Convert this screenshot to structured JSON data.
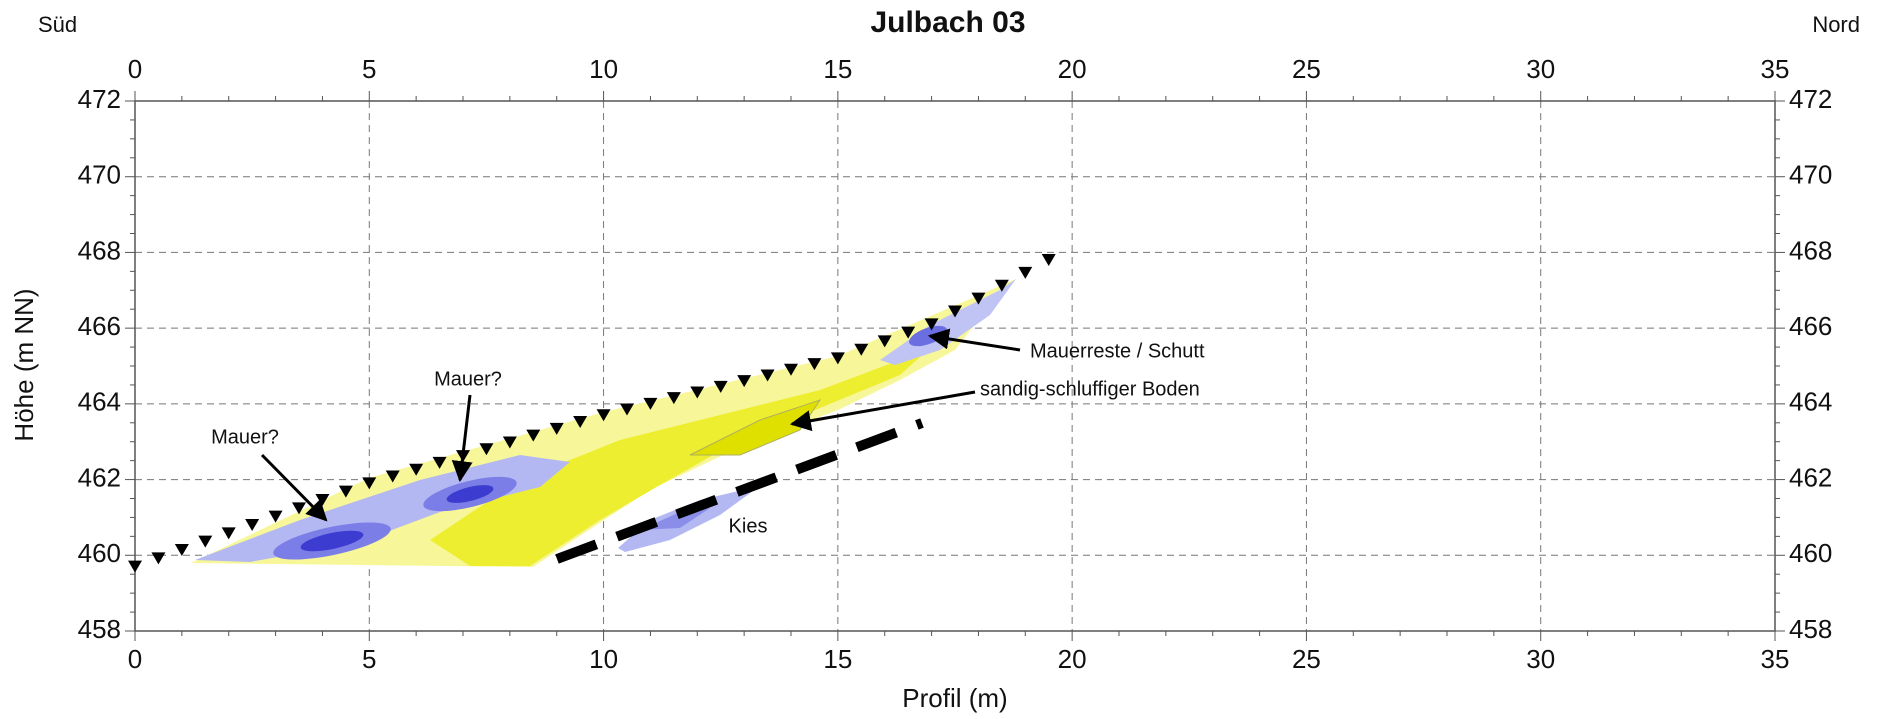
{
  "chart_data": {
    "type": "scatter",
    "title": "Julbach 03",
    "left_label": "Süd",
    "right_label": "Nord",
    "xlabel": "Profil (m)",
    "ylabel": "Höhe (m NN)",
    "xlim": [
      0,
      35
    ],
    "ylim": [
      458,
      472
    ],
    "xticks": [
      0,
      5,
      10,
      15,
      20,
      25,
      30,
      35
    ],
    "yticks": [
      458,
      460,
      462,
      464,
      466,
      468,
      470,
      472
    ],
    "grid": true,
    "annotations": [
      "Mauer?",
      "Mauer?",
      "Mauerreste / Schutt",
      "sandig-schluffiger Boden",
      "Kies"
    ],
    "markers": {
      "color": "#000000",
      "x": [
        0,
        0.5,
        1,
        1.5,
        2,
        2.5,
        3,
        3.5,
        4,
        4.5,
        5,
        5.5,
        6,
        6.5,
        7,
        7.5,
        8,
        8.5,
        9,
        9.5,
        10,
        10.5,
        11,
        11.5,
        12,
        12.5,
        13,
        13.5,
        14,
        14.5,
        15,
        15.5,
        16,
        16.5,
        17,
        17.5,
        18,
        18.5,
        19,
        19.5
      ],
      "y": [
        459.7,
        459.92,
        460.14,
        460.36,
        460.58,
        460.8,
        461.02,
        461.24,
        461.46,
        461.68,
        461.9,
        462.08,
        462.26,
        462.44,
        462.62,
        462.8,
        462.98,
        463.16,
        463.34,
        463.52,
        463.7,
        463.85,
        464.0,
        464.15,
        464.3,
        464.45,
        464.6,
        464.75,
        464.9,
        465.05,
        465.2,
        465.43,
        465.65,
        465.88,
        466.1,
        466.44,
        466.78,
        467.12,
        467.46,
        467.8
      ]
    }
  }
}
